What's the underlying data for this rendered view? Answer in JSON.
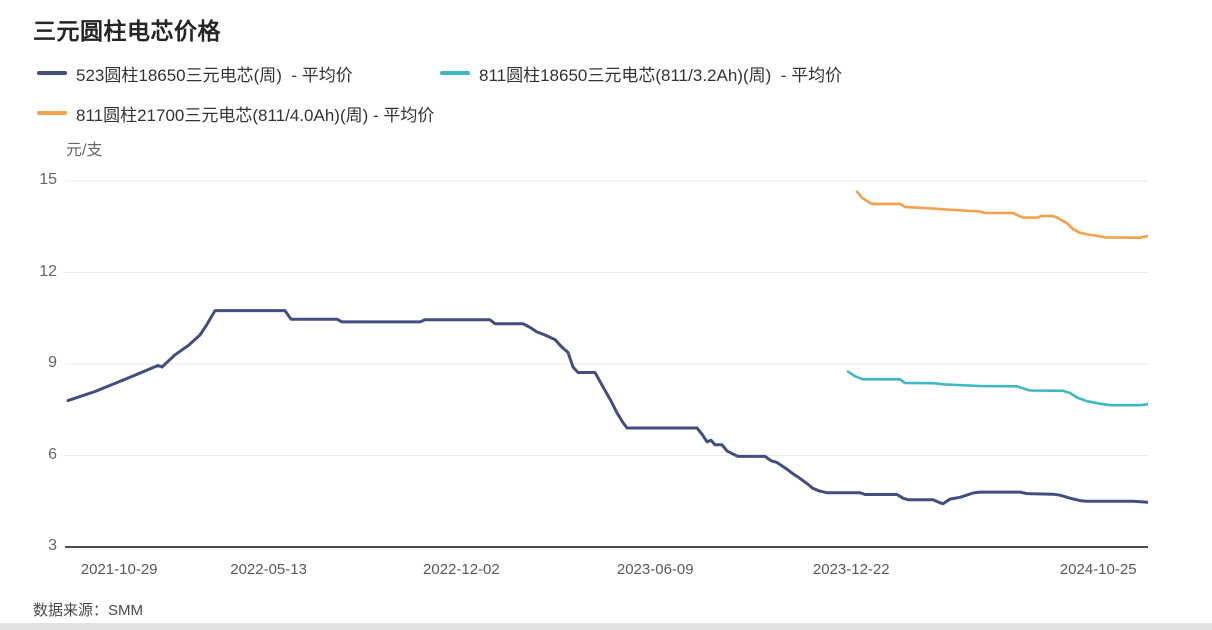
{
  "title": "三元圆柱电芯价格",
  "footer": {
    "source_label": "数据来源：SMM"
  },
  "chart_data": {
    "type": "line",
    "title": "三元圆柱电芯价格",
    "ylabel": "元/支",
    "ylim": [
      3,
      15
    ],
    "yticks": [
      15,
      12,
      9,
      6,
      3
    ],
    "grid": true,
    "legend_position": "top-left",
    "x_axis_labels": [
      {
        "label": "2021-10-29",
        "pos": 0.05
      },
      {
        "label": "2022-05-13",
        "pos": 0.188
      },
      {
        "label": "2022-12-02",
        "pos": 0.366
      },
      {
        "label": "2023-06-09",
        "pos": 0.545
      },
      {
        "label": "2023-12-22",
        "pos": 0.726
      },
      {
        "label": "2024-10-25",
        "pos": 0.954
      }
    ],
    "x_unit_note": "x = position along weekly time axis, 0–1083 (plot px); y = price in 元/支",
    "series": [
      {
        "name": "523圆柱18650三元电芯(周)  - 平均价",
        "color": "#424e7f",
        "points": [
          [
            3,
            7.8
          ],
          [
            30,
            8.1
          ],
          [
            60,
            8.5
          ],
          [
            93,
            8.95
          ],
          [
            97,
            8.9
          ],
          [
            110,
            9.3
          ],
          [
            123,
            9.6
          ],
          [
            135,
            9.95
          ],
          [
            142,
            10.3
          ],
          [
            150,
            10.75
          ],
          [
            220,
            10.75
          ],
          [
            226,
            10.47
          ],
          [
            272,
            10.47
          ],
          [
            277,
            10.38
          ],
          [
            355,
            10.38
          ],
          [
            360,
            10.45
          ],
          [
            425,
            10.45
          ],
          [
            430,
            10.32
          ],
          [
            458,
            10.32
          ],
          [
            465,
            10.2
          ],
          [
            472,
            10.05
          ],
          [
            480,
            9.95
          ],
          [
            490,
            9.8
          ],
          [
            497,
            9.55
          ],
          [
            503,
            9.38
          ],
          [
            508,
            8.9
          ],
          [
            513,
            8.72
          ],
          [
            530,
            8.72
          ],
          [
            538,
            8.25
          ],
          [
            545,
            7.85
          ],
          [
            552,
            7.4
          ],
          [
            558,
            7.08
          ],
          [
            562,
            6.9
          ],
          [
            632,
            6.9
          ],
          [
            637,
            6.7
          ],
          [
            642,
            6.45
          ],
          [
            646,
            6.5
          ],
          [
            650,
            6.35
          ],
          [
            657,
            6.35
          ],
          [
            662,
            6.15
          ],
          [
            668,
            6.05
          ],
          [
            673,
            5.97
          ],
          [
            700,
            5.97
          ],
          [
            706,
            5.83
          ],
          [
            712,
            5.77
          ],
          [
            722,
            5.55
          ],
          [
            728,
            5.4
          ],
          [
            735,
            5.25
          ],
          [
            742,
            5.08
          ],
          [
            748,
            4.92
          ],
          [
            755,
            4.83
          ],
          [
            762,
            4.78
          ],
          [
            795,
            4.78
          ],
          [
            800,
            4.72
          ],
          [
            832,
            4.72
          ],
          [
            838,
            4.6
          ],
          [
            843,
            4.55
          ],
          [
            868,
            4.55
          ],
          [
            875,
            4.45
          ],
          [
            878,
            4.42
          ],
          [
            885,
            4.57
          ],
          [
            895,
            4.63
          ],
          [
            908,
            4.77
          ],
          [
            915,
            4.8
          ],
          [
            955,
            4.8
          ],
          [
            962,
            4.75
          ],
          [
            988,
            4.73
          ],
          [
            995,
            4.7
          ],
          [
            1005,
            4.6
          ],
          [
            1015,
            4.52
          ],
          [
            1022,
            4.5
          ],
          [
            1068,
            4.5
          ],
          [
            1083,
            4.47
          ]
        ]
      },
      {
        "name": "811圆柱18650三元电芯(811/3.2Ah)(周)  - 平均价",
        "color": "#41b7c5",
        "points": [
          [
            783,
            8.75
          ],
          [
            790,
            8.6
          ],
          [
            798,
            8.5
          ],
          [
            835,
            8.5
          ],
          [
            840,
            8.38
          ],
          [
            868,
            8.37
          ],
          [
            880,
            8.33
          ],
          [
            915,
            8.28
          ],
          [
            952,
            8.27
          ],
          [
            960,
            8.18
          ],
          [
            965,
            8.13
          ],
          [
            998,
            8.12
          ],
          [
            1005,
            8.05
          ],
          [
            1012,
            7.9
          ],
          [
            1022,
            7.78
          ],
          [
            1035,
            7.7
          ],
          [
            1045,
            7.65
          ],
          [
            1075,
            7.65
          ],
          [
            1083,
            7.68
          ]
        ]
      },
      {
        "name": "811圆柱21700三元电芯(811/4.0Ah)(周) - 平均价",
        "color": "#f5a04c",
        "points": [
          [
            792,
            14.65
          ],
          [
            797,
            14.45
          ],
          [
            805,
            14.28
          ],
          [
            808,
            14.25
          ],
          [
            835,
            14.25
          ],
          [
            840,
            14.15
          ],
          [
            868,
            14.1
          ],
          [
            880,
            14.07
          ],
          [
            915,
            14.0
          ],
          [
            920,
            13.95
          ],
          [
            948,
            13.95
          ],
          [
            953,
            13.87
          ],
          [
            958,
            13.8
          ],
          [
            972,
            13.8
          ],
          [
            976,
            13.85
          ],
          [
            988,
            13.85
          ],
          [
            993,
            13.78
          ],
          [
            1002,
            13.62
          ],
          [
            1008,
            13.42
          ],
          [
            1015,
            13.3
          ],
          [
            1022,
            13.25
          ],
          [
            1032,
            13.2
          ],
          [
            1040,
            13.15
          ],
          [
            1075,
            13.14
          ],
          [
            1083,
            13.2
          ]
        ]
      }
    ]
  }
}
